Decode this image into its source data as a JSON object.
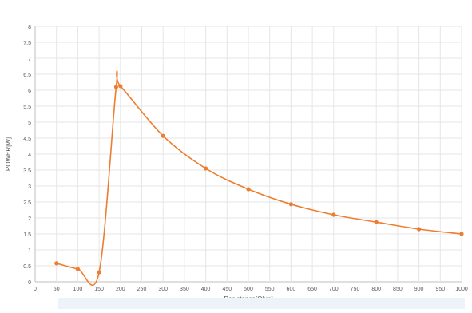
{
  "chart_data": {
    "type": "line",
    "title": "",
    "xlabel": "Resistance[Ohm]",
    "ylabel": "POWER[W]",
    "xlim": [
      0,
      1000
    ],
    "ylim": [
      0,
      8
    ],
    "xticks": [
      0,
      50,
      100,
      150,
      200,
      250,
      300,
      350,
      400,
      450,
      500,
      550,
      600,
      650,
      700,
      750,
      800,
      850,
      900,
      950,
      1000
    ],
    "yticks": [
      0,
      0.5,
      1,
      1.5,
      2,
      2.5,
      3,
      3.5,
      4,
      4.5,
      5,
      5.5,
      6,
      6.5,
      7,
      7.5,
      8
    ],
    "grid": true,
    "smooth": true,
    "series": [
      {
        "color": "#ed7d31",
        "x": [
          50,
          100,
          150,
          190,
          200,
          300,
          400,
          500,
          600,
          700,
          800,
          900,
          1000
        ],
        "y": [
          0.58,
          0.4,
          0.3,
          6.1,
          6.13,
          4.57,
          3.55,
          2.9,
          2.43,
          2.1,
          1.87,
          1.65,
          1.5
        ]
      }
    ]
  }
}
